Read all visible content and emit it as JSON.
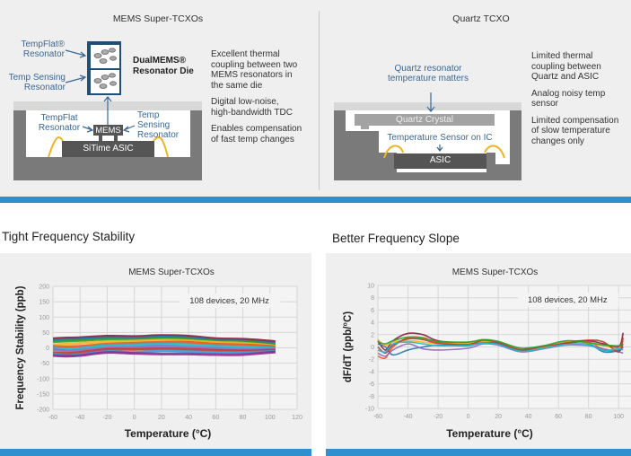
{
  "top": {
    "mems": {
      "title": "MEMS Super-TCXOs",
      "die_label": [
        "DualMEMS®",
        "Resonator Die"
      ],
      "label_tempflat": [
        "TempFlat®",
        "Resonator"
      ],
      "label_tempsense": [
        "Temp Sensing",
        "Resonator"
      ],
      "inner_tempflat": [
        "TempFlat",
        "Resonator"
      ],
      "inner_tempsense": [
        "Temp",
        "Sensing",
        "Resonator"
      ],
      "mems_chip": "MEMS",
      "asic": "SiTime ASIC",
      "notes": [
        [
          "Excellent thermal",
          "coupling between two",
          "MEMS resonators in",
          "the same die"
        ],
        [
          "Digital low-noise,",
          "high-bandwidth TDC"
        ],
        [
          "Enables compensation",
          "of fast temp changes"
        ]
      ]
    },
    "quartz": {
      "title": "Quartz TCXO",
      "callout": [
        "Quartz resonator",
        "temperature matters"
      ],
      "crystal": "Quartz Crystal",
      "sensor": "Temperature Sensor on IC",
      "asic": "ASIC",
      "notes": [
        [
          "Limited thermal",
          "coupling between",
          "Quartz and ASIC"
        ],
        [
          "Analog noisy temp",
          "sensor"
        ],
        [
          "Limited compensation",
          "of slow temperature",
          "changes only"
        ]
      ]
    }
  },
  "sections": {
    "left": "Tight Frequency Stability",
    "right": "Better Frequency Slope"
  },
  "colors": {
    "accent": "#2f8fcf",
    "navy": "#1f4e79",
    "label_blue": "#3a6794",
    "wire": "#f0b323"
  },
  "chart_data": [
    {
      "type": "line",
      "title": "MEMS Super-TCXOs",
      "annotation": "108 devices, 20 MHz",
      "xlabel": "Temperature (°C)",
      "ylabel": "Frequency Stability (ppb)",
      "xlim": [
        -60,
        120
      ],
      "ylim": [
        -200,
        200
      ],
      "xticks": [
        -60,
        -40,
        -20,
        0,
        20,
        40,
        60,
        80,
        100,
        120
      ],
      "yticks": [
        200,
        150,
        100,
        50,
        0,
        -50,
        -100,
        -150,
        -200
      ],
      "grid": true,
      "x": [
        -60,
        -50,
        -40,
        -20,
        0,
        20,
        40,
        60,
        80,
        100,
        104
      ],
      "series": [
        {
          "color": "#8b1a3a",
          "values": [
            30,
            32,
            33,
            38,
            37,
            40,
            38,
            30,
            28,
            22,
            20
          ]
        },
        {
          "color": "#1f77b4",
          "values": [
            25,
            27,
            28,
            33,
            32,
            35,
            33,
            25,
            22,
            16,
            15
          ]
        },
        {
          "color": "#2ca02c",
          "values": [
            20,
            22,
            24,
            28,
            27,
            30,
            28,
            22,
            20,
            12,
            10
          ]
        },
        {
          "color": "#f0b323",
          "values": [
            10,
            12,
            15,
            20,
            22,
            25,
            23,
            18,
            15,
            8,
            5
          ]
        },
        {
          "color": "#e4572e",
          "values": [
            5,
            3,
            5,
            12,
            15,
            18,
            18,
            12,
            10,
            5,
            2
          ]
        },
        {
          "color": "#17becf",
          "values": [
            0,
            -5,
            -2,
            8,
            10,
            12,
            10,
            5,
            3,
            0,
            -2
          ]
        },
        {
          "color": "#9467bd",
          "values": [
            -5,
            -10,
            -8,
            0,
            2,
            5,
            2,
            -2,
            -5,
            -5,
            -5
          ]
        },
        {
          "color": "#c0392b",
          "values": [
            -15,
            -18,
            -15,
            -5,
            -5,
            -3,
            -5,
            -8,
            -10,
            -8,
            -8
          ]
        },
        {
          "color": "#3a9ad9",
          "values": [
            -20,
            -25,
            -22,
            -12,
            -15,
            -10,
            -12,
            -15,
            -15,
            -12,
            -12
          ]
        },
        {
          "color": "#8e2b8e",
          "values": [
            -25,
            -27,
            -25,
            -15,
            -18,
            -20,
            -20,
            -22,
            -22,
            -15,
            -14
          ]
        }
      ]
    },
    {
      "type": "line",
      "title": "MEMS Super-TCXOs",
      "annotation": "108 devices, 20 MHz",
      "xlabel": "Temperature (°C)",
      "ylabel": "dF/dT (ppb/°C)",
      "xlim": [
        -60,
        110
      ],
      "ylim": [
        -10,
        10
      ],
      "xticks": [
        -60,
        -40,
        -20,
        0,
        20,
        40,
        60,
        80,
        100
      ],
      "yticks": [
        10,
        8,
        6,
        4,
        2,
        0,
        -2,
        -4,
        -6,
        -8,
        -10
      ],
      "grid": true,
      "x": [
        -60,
        -55,
        -50,
        -40,
        -30,
        -20,
        0,
        10,
        20,
        35,
        50,
        65,
        80,
        90,
        100,
        103
      ],
      "series": [
        {
          "color": "#8b1a3a",
          "values": [
            1,
            -0.5,
            1,
            2.2,
            2,
            1,
            0.5,
            1,
            0.8,
            -0.3,
            0,
            0.8,
            1,
            0.5,
            0,
            2.3
          ]
        },
        {
          "color": "#e4572e",
          "values": [
            -1.5,
            -1.8,
            0,
            1.5,
            1.5,
            0.8,
            0.7,
            1,
            0.6,
            -0.5,
            -0.2,
            0.5,
            0.8,
            -0.5,
            -0.5,
            0.5
          ]
        },
        {
          "color": "#1f77b4",
          "values": [
            0.5,
            0,
            -1.3,
            -0.5,
            0,
            0.3,
            0.2,
            0.8,
            0.5,
            -0.6,
            0,
            0.7,
            0.5,
            -0.8,
            -0.6,
            0
          ]
        },
        {
          "color": "#9467bd",
          "values": [
            -1,
            -1.5,
            -0.5,
            0.5,
            -0.3,
            -0.5,
            -0.2,
            0.5,
            0.3,
            -0.8,
            -0.3,
            0.3,
            0.2,
            -0.3,
            -0.8,
            -1
          ]
        },
        {
          "color": "#f0b323",
          "values": [
            1.2,
            0.2,
            0.8,
            1,
            0.8,
            0.5,
            0.6,
            0.9,
            0.8,
            -0.4,
            -0.1,
            0.9,
            0.6,
            0.2,
            -0.2,
            1
          ]
        },
        {
          "color": "#c0392b",
          "values": [
            0,
            -1,
            0.3,
            1.3,
            1.2,
            0.6,
            0.4,
            1.1,
            0.7,
            -0.5,
            0.1,
            0.6,
            1.1,
            0.8,
            -0.8,
            1.5
          ]
        },
        {
          "color": "#17becf",
          "values": [
            -0.5,
            -0.8,
            0.5,
            0.8,
            0.5,
            0.2,
            0.3,
            0.6,
            0.4,
            -0.7,
            -0.2,
            0.4,
            0.3,
            -0.6,
            -0.3,
            -0.5
          ]
        },
        {
          "color": "#2ca02c",
          "values": [
            0.8,
            0.5,
            1,
            1.6,
            1.4,
            0.9,
            0.8,
            1.2,
            0.9,
            -0.2,
            0.2,
            1,
            0.7,
            0.3,
            0.2,
            0.3
          ]
        }
      ]
    }
  ]
}
